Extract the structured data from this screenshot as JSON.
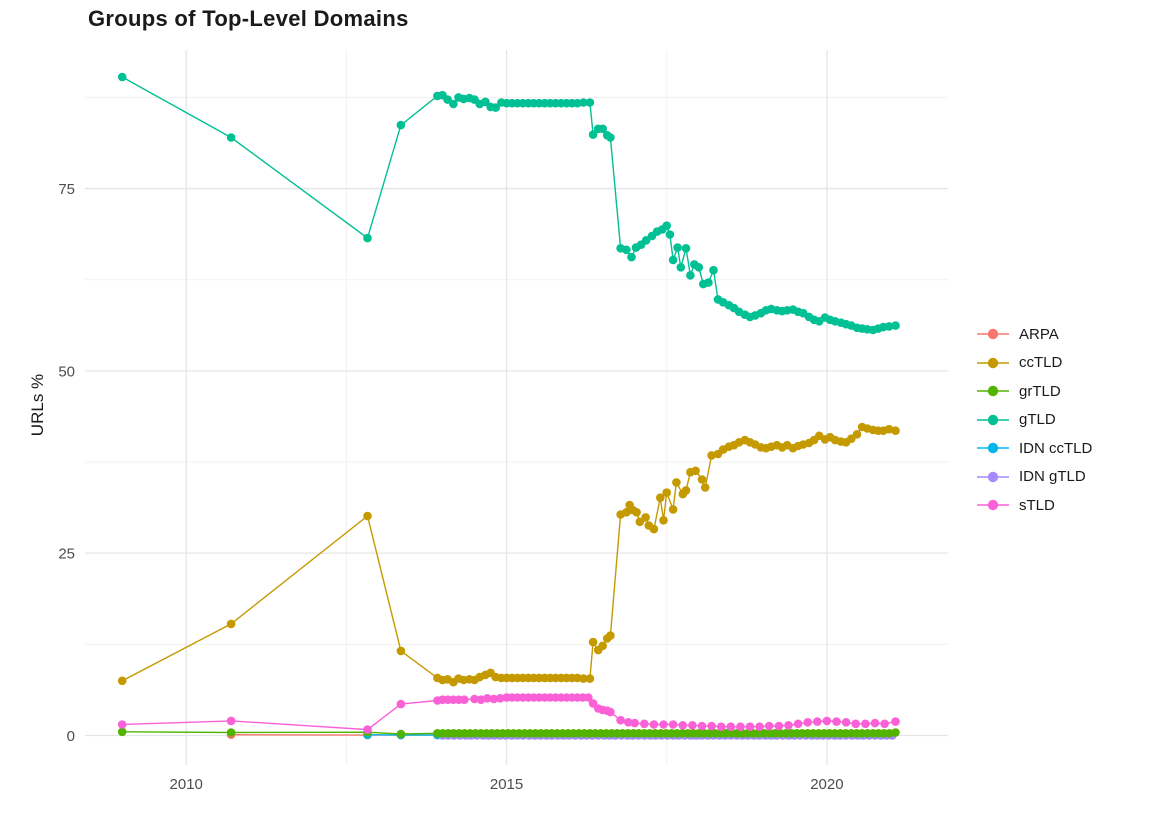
{
  "chart_data": {
    "type": "line",
    "title": "Groups of Top-Level Domains",
    "xlabel": "",
    "ylabel": "URLs %",
    "x_ticks": [
      2010,
      2015,
      2020
    ],
    "x_minor_ticks": [
      2012.5,
      2017.5
    ],
    "y_ticks": [
      0,
      25,
      50,
      75
    ],
    "y_minor_ticks": [
      12.5,
      37.5,
      62.5,
      87.5
    ],
    "xlim": [
      2008.42,
      2021.89
    ],
    "ylim": [
      -4.05,
      94.0
    ],
    "grid": true,
    "legend_position": "right",
    "series": [
      {
        "name": "ARPA",
        "color": "#F8766D",
        "points": [
          [
            2010.7,
            0.1
          ],
          [
            2012.83,
            0.05
          ],
          [
            2013.35,
            0.05
          ],
          {
            "from": 2013.92,
            "to": 2021.05,
            "step": 0.25,
            "value": 0.05
          }
        ]
      },
      {
        "name": "ccTLD",
        "color": "#C49A00",
        "points": [
          [
            2009.0,
            7.5
          ],
          [
            2010.7,
            15.3
          ],
          [
            2012.83,
            30.1
          ],
          [
            2013.35,
            11.6
          ],
          [
            2013.92,
            7.9
          ],
          [
            2014.0,
            7.6
          ],
          [
            2014.08,
            7.7
          ],
          [
            2014.17,
            7.3
          ],
          [
            2014.25,
            7.8
          ],
          [
            2014.33,
            7.6
          ],
          [
            2014.42,
            7.7
          ],
          [
            2014.5,
            7.6
          ],
          [
            2014.58,
            8.0
          ],
          [
            2014.67,
            8.3
          ],
          [
            2014.75,
            8.6
          ],
          [
            2014.83,
            8.0
          ],
          [
            2014.92,
            7.9
          ],
          {
            "from": 2015.0,
            "to": 2016.12,
            "step": 0.085,
            "value": 7.9
          },
          [
            2016.2,
            7.8
          ],
          [
            2016.3,
            7.8
          ],
          [
            2016.35,
            12.8
          ],
          [
            2016.43,
            11.7
          ],
          [
            2016.5,
            12.3
          ],
          [
            2016.57,
            13.3
          ],
          [
            2016.62,
            13.7
          ],
          [
            2016.78,
            30.3
          ],
          [
            2016.87,
            30.6
          ],
          [
            2016.92,
            31.6
          ],
          [
            2016.97,
            30.9
          ],
          [
            2017.03,
            30.6
          ],
          [
            2017.08,
            29.3
          ],
          [
            2017.17,
            29.9
          ],
          [
            2017.22,
            28.8
          ],
          [
            2017.3,
            28.3
          ],
          [
            2017.4,
            32.6
          ],
          [
            2017.45,
            29.5
          ],
          [
            2017.5,
            33.3
          ],
          [
            2017.6,
            31.0
          ],
          [
            2017.65,
            34.7
          ],
          [
            2017.75,
            33.1
          ],
          [
            2017.8,
            33.6
          ],
          [
            2017.87,
            36.1
          ],
          [
            2017.95,
            36.3
          ],
          [
            2018.05,
            35.1
          ],
          [
            2018.1,
            34.0
          ],
          [
            2018.2,
            38.4
          ],
          [
            2018.3,
            38.6
          ],
          [
            2018.38,
            39.2
          ],
          [
            2018.47,
            39.6
          ],
          [
            2018.55,
            39.8
          ],
          [
            2018.63,
            40.2
          ],
          [
            2018.72,
            40.5
          ],
          [
            2018.8,
            40.2
          ],
          [
            2018.88,
            39.9
          ],
          [
            2018.97,
            39.5
          ],
          [
            2019.05,
            39.4
          ],
          [
            2019.13,
            39.6
          ],
          [
            2019.22,
            39.8
          ],
          [
            2019.3,
            39.5
          ],
          [
            2019.38,
            39.8
          ],
          [
            2019.47,
            39.4
          ],
          [
            2019.55,
            39.7
          ],
          [
            2019.63,
            39.9
          ],
          [
            2019.72,
            40.1
          ],
          [
            2019.8,
            40.5
          ],
          [
            2019.88,
            41.1
          ],
          [
            2019.97,
            40.6
          ],
          [
            2020.05,
            40.9
          ],
          [
            2020.13,
            40.5
          ],
          [
            2020.22,
            40.3
          ],
          [
            2020.3,
            40.2
          ],
          [
            2020.38,
            40.7
          ],
          [
            2020.47,
            41.3
          ],
          [
            2020.55,
            42.3
          ],
          [
            2020.63,
            42.1
          ],
          [
            2020.72,
            41.9
          ],
          [
            2020.8,
            41.8
          ],
          [
            2020.88,
            41.8
          ],
          [
            2020.97,
            42.0
          ],
          [
            2021.07,
            41.8
          ]
        ]
      },
      {
        "name": "grTLD",
        "color": "#53B400",
        "points": [
          [
            2009.0,
            0.5
          ],
          [
            2010.7,
            0.4
          ],
          [
            2012.83,
            0.45
          ],
          [
            2013.35,
            0.2
          ],
          {
            "from": 2013.92,
            "to": 2021.0,
            "step": 0.085,
            "value": 0.3
          },
          [
            2021.07,
            0.4
          ]
        ]
      },
      {
        "name": "gTLD",
        "color": "#00C094",
        "points": [
          [
            2009.0,
            90.3
          ],
          [
            2010.7,
            82.0
          ],
          [
            2012.83,
            68.2
          ],
          [
            2013.35,
            83.7
          ],
          [
            2013.92,
            87.7
          ],
          [
            2014.0,
            87.8
          ],
          [
            2014.08,
            87.2
          ],
          [
            2014.17,
            86.6
          ],
          [
            2014.25,
            87.5
          ],
          [
            2014.33,
            87.3
          ],
          [
            2014.42,
            87.4
          ],
          [
            2014.5,
            87.2
          ],
          [
            2014.58,
            86.6
          ],
          [
            2014.67,
            86.9
          ],
          [
            2014.75,
            86.2
          ],
          [
            2014.83,
            86.1
          ],
          [
            2014.92,
            86.8
          ],
          {
            "from": 2015.0,
            "to": 2016.12,
            "step": 0.085,
            "value": 86.7
          },
          [
            2016.2,
            86.8
          ],
          [
            2016.3,
            86.8
          ],
          [
            2016.35,
            82.4
          ],
          [
            2016.43,
            83.2
          ],
          [
            2016.5,
            83.2
          ],
          [
            2016.57,
            82.3
          ],
          [
            2016.62,
            82.0
          ],
          [
            2016.78,
            66.8
          ],
          [
            2016.87,
            66.6
          ],
          [
            2016.95,
            65.6
          ],
          [
            2017.02,
            66.9
          ],
          [
            2017.1,
            67.3
          ],
          [
            2017.18,
            67.9
          ],
          [
            2017.27,
            68.5
          ],
          [
            2017.35,
            69.1
          ],
          [
            2017.43,
            69.4
          ],
          [
            2017.5,
            69.9
          ],
          [
            2017.55,
            68.7
          ],
          [
            2017.6,
            65.2
          ],
          [
            2017.67,
            66.9
          ],
          [
            2017.72,
            64.2
          ],
          [
            2017.8,
            66.8
          ],
          [
            2017.87,
            63.1
          ],
          [
            2017.93,
            64.6
          ],
          [
            2018.0,
            64.2
          ],
          [
            2018.07,
            61.9
          ],
          [
            2018.15,
            62.1
          ],
          [
            2018.23,
            63.8
          ],
          [
            2018.3,
            59.8
          ],
          [
            2018.38,
            59.4
          ],
          [
            2018.47,
            59.0
          ],
          [
            2018.55,
            58.6
          ],
          [
            2018.63,
            58.1
          ],
          [
            2018.72,
            57.7
          ],
          [
            2018.8,
            57.4
          ],
          [
            2018.88,
            57.6
          ],
          [
            2018.97,
            57.9
          ],
          [
            2019.05,
            58.3
          ],
          [
            2019.13,
            58.5
          ],
          [
            2019.22,
            58.3
          ],
          [
            2019.3,
            58.2
          ],
          [
            2019.38,
            58.3
          ],
          [
            2019.47,
            58.4
          ],
          [
            2019.55,
            58.1
          ],
          [
            2019.63,
            57.9
          ],
          [
            2019.72,
            57.4
          ],
          [
            2019.8,
            57.0
          ],
          [
            2019.88,
            56.8
          ],
          [
            2019.97,
            57.3
          ],
          [
            2020.05,
            57.0
          ],
          [
            2020.13,
            56.8
          ],
          [
            2020.22,
            56.6
          ],
          [
            2020.3,
            56.4
          ],
          [
            2020.38,
            56.2
          ],
          [
            2020.47,
            55.9
          ],
          [
            2020.55,
            55.8
          ],
          [
            2020.63,
            55.7
          ],
          [
            2020.72,
            55.6
          ],
          [
            2020.8,
            55.8
          ],
          [
            2020.88,
            56.0
          ],
          [
            2020.97,
            56.1
          ],
          [
            2021.07,
            56.2
          ]
        ]
      },
      {
        "name": "IDN ccTLD",
        "color": "#00B6EB",
        "points": [
          [
            2012.83,
            0.1
          ],
          [
            2013.35,
            0.07
          ],
          {
            "from": 2013.92,
            "to": 2021.05,
            "step": 0.12,
            "value": 0.06
          }
        ]
      },
      {
        "name": "IDN gTLD",
        "color": "#A58AFF",
        "points": [
          {
            "from": 2014.0,
            "to": 2021.05,
            "step": 0.09,
            "value": 0.0
          }
        ]
      },
      {
        "name": "sTLD",
        "color": "#FB61D7",
        "points": [
          [
            2009.0,
            1.5
          ],
          [
            2010.7,
            2.0
          ],
          [
            2012.83,
            0.8
          ],
          [
            2013.35,
            4.3
          ],
          [
            2013.92,
            4.8
          ],
          {
            "from": 2014.0,
            "to": 2014.4,
            "step": 0.085,
            "value": 4.9
          },
          [
            2014.5,
            5.0
          ],
          [
            2014.6,
            4.9
          ],
          [
            2014.7,
            5.1
          ],
          [
            2014.8,
            5.0
          ],
          [
            2014.9,
            5.1
          ],
          {
            "from": 2015.0,
            "to": 2016.3,
            "step": 0.085,
            "value": 5.2
          },
          [
            2016.35,
            4.4
          ],
          [
            2016.43,
            3.7
          ],
          [
            2016.5,
            3.5
          ],
          [
            2016.57,
            3.4
          ],
          [
            2016.62,
            3.2
          ],
          [
            2016.78,
            2.1
          ],
          [
            2016.9,
            1.8
          ],
          [
            2017.0,
            1.7
          ],
          [
            2017.15,
            1.6
          ],
          [
            2017.3,
            1.5
          ],
          [
            2017.45,
            1.5
          ],
          [
            2017.6,
            1.5
          ],
          [
            2017.75,
            1.4
          ],
          [
            2017.9,
            1.4
          ],
          [
            2018.05,
            1.3
          ],
          [
            2018.2,
            1.3
          ],
          [
            2018.35,
            1.2
          ],
          [
            2018.5,
            1.2
          ],
          [
            2018.65,
            1.2
          ],
          [
            2018.8,
            1.2
          ],
          [
            2018.95,
            1.2
          ],
          [
            2019.1,
            1.3
          ],
          [
            2019.25,
            1.3
          ],
          [
            2019.4,
            1.4
          ],
          [
            2019.55,
            1.6
          ],
          [
            2019.7,
            1.8
          ],
          [
            2019.85,
            1.9
          ],
          [
            2020.0,
            2.0
          ],
          [
            2020.15,
            1.9
          ],
          [
            2020.3,
            1.8
          ],
          [
            2020.45,
            1.6
          ],
          [
            2020.6,
            1.6
          ],
          [
            2020.75,
            1.7
          ],
          [
            2020.9,
            1.6
          ],
          [
            2021.07,
            1.9
          ]
        ]
      }
    ]
  },
  "colors": {
    "background": "#FFFFFF",
    "grid_major": "#E5E5E5",
    "grid_minor": "#F1F1F1",
    "tick_text": "#4D4D4D",
    "text": "#1A1A1A"
  }
}
